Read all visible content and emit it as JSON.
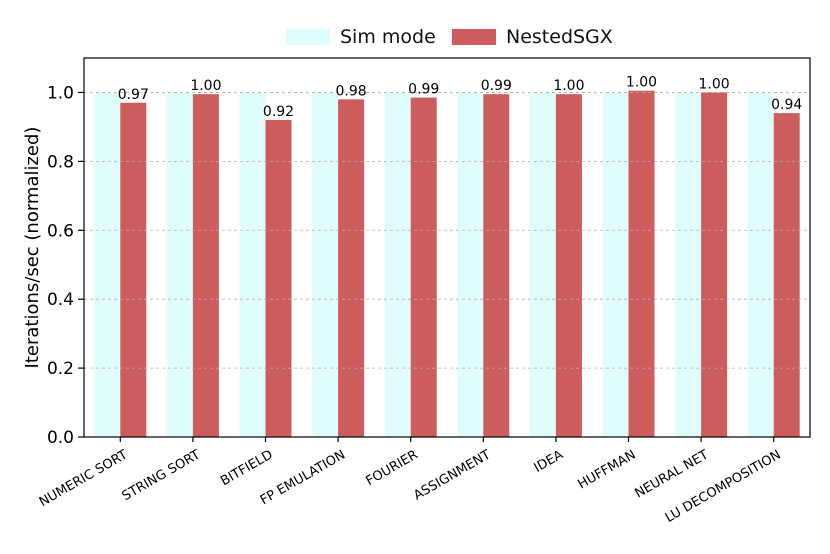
{
  "chart_data": {
    "type": "bar",
    "categories": [
      "NUMERIC SORT",
      "STRING SORT",
      "BITFIELD",
      "FP EMULATION",
      "FOURIER",
      "ASSIGNMENT",
      "IDEA",
      "HUFFMAN",
      "NEURAL NET",
      "LU DECOMPOSITION"
    ],
    "series": [
      {
        "name": "Sim mode",
        "color": "#e0fdfd",
        "values": [
          1.0,
          1.0,
          1.0,
          1.0,
          1.0,
          1.0,
          1.0,
          1.0,
          1.0,
          1.0
        ]
      },
      {
        "name": "NestedSGX",
        "color": "#cd5c5c",
        "values": [
          0.97,
          0.995,
          0.92,
          0.98,
          0.985,
          0.995,
          0.995,
          1.005,
          1.0,
          0.94
        ],
        "labels": [
          "0.97",
          "1.00",
          "0.92",
          "0.98",
          "0.99",
          "0.99",
          "1.00",
          "1.00",
          "1.00",
          "0.94"
        ]
      }
    ],
    "ylabel": "Iterations/sec (normalized)",
    "ylim": [
      0,
      1.1
    ],
    "yticks": [
      "0.0",
      "0.2",
      "0.4",
      "0.6",
      "0.8",
      "1.0"
    ],
    "grid": "horizontal dashed",
    "legend": "top-center"
  }
}
